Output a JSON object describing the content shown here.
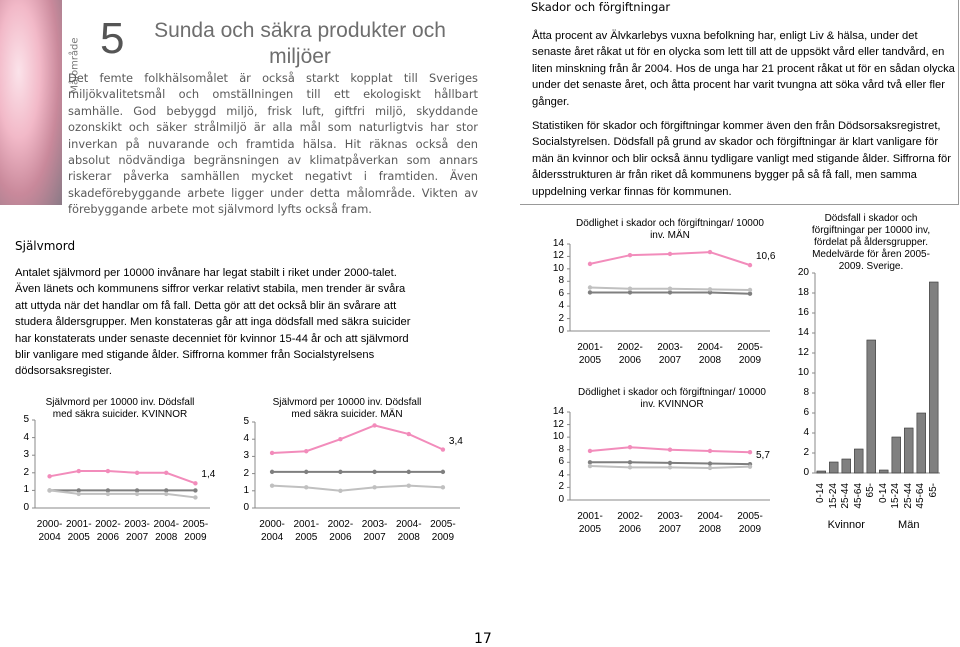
{
  "header": {
    "side_label": "Målområde",
    "number": "5",
    "title": "Sunda och säkra produkter och miljöer"
  },
  "intro": "Det femte folkhälsomålet är också starkt kopplat till Sveriges miljökvalitetsmål och omställningen till ett ekologiskt hållbart samhälle. God bebyggd miljö, frisk luft, giftfri miljö, skyddande ozonskikt och säker strålmiljö är alla mål som naturligtvis har stor inverkan på nuvarande och framtida hälsa. Hit räknas också den absolut nödvändiga begränsningen av klimatpåverkan som annars riskerar påverka samhällen mycket negativt i framtiden. Även skadeförebyggande arbete ligger under detta målområde. Vikten av förebyggande arbete mot självmord lyfts också fram.",
  "section": {
    "heading": "Skador och förgiftningar",
    "paragraphs": [
      "Åtta procent av Älvkarlebys vuxna befolkning har, enligt Liv & hälsa, under det senaste året råkat ut för en olycka som lett till att de uppsökt vård eller tandvård, en liten minskning från år 2004. Hos de unga har 21 procent råkat ut för en sådan olycka under det senaste året, och åtta procent har varit tvungna att söka vård två eller fler gånger.",
      "Statistiken för skador och förgiftningar kommer även den från Dödsorsaksregistret, Socialstyrelsen. Dödsfall på grund av skador och förgiftningar är klart vanligare för män än kvinnor och blir också ännu tydligare vanligt med stigande ålder. Siffrorna för åldersstrukturen är från riket då kommunens bygger på så få fall, men samma uppdelning verkar finnas för kommunen."
    ]
  },
  "suicide": {
    "heading": "Självmord",
    "paragraph": "Antalet självmord per 10000 invånare har legat stabilt i riket under 2000-talet. Även länets och kommunens siffror verkar relativt stabila, men trender är svåra att uttyda när det handlar om få fall. Detta gör att det också blir än svårare att studera åldersgrupper. Men konstateras går att inga dödsfall med säkra suicider har konstaterats under senaste decenniet för kvinnor 15-44 år och att självmord blir vanligare med stigande ålder. Siffrorna kommer från Socialstyrelsens dödsorsaksregister."
  },
  "page_number": "17",
  "chart_data": [
    {
      "type": "line",
      "title": "Självmord per 10000 inv. Dödsfall med säkra suicider. KVINNOR",
      "categories": [
        "2000-2004",
        "2001-2005",
        "2002-2006",
        "2003-2007",
        "2004-2008",
        "2005-2009"
      ],
      "ylim": [
        0,
        5
      ],
      "yticks": [
        0,
        1,
        2,
        3,
        4,
        5
      ],
      "series": [
        {
          "color": "#f28cbb",
          "values": [
            1.8,
            2.1,
            2.1,
            2.0,
            2.0,
            1.4
          ],
          "value_labels": [
            null,
            null,
            null,
            null,
            null,
            "1,4"
          ]
        },
        {
          "color": "#7f7f7f",
          "values": [
            1.0,
            1.0,
            1.0,
            1.0,
            1.0,
            1.0
          ]
        },
        {
          "color": "#c0c0c0",
          "values": [
            1.0,
            0.8,
            0.8,
            0.8,
            0.8,
            0.6
          ]
        }
      ]
    },
    {
      "type": "line",
      "title": "Självmord per 10000 inv. Dödsfall med säkra suicider. MÄN",
      "categories": [
        "2000-2004",
        "2001-2005",
        "2002-2006",
        "2003-2007",
        "2004-2008",
        "2005-2009"
      ],
      "ylim": [
        0,
        5
      ],
      "yticks": [
        0,
        1,
        2,
        3,
        4,
        5
      ],
      "series": [
        {
          "color": "#f28cbb",
          "values": [
            3.2,
            3.3,
            4.0,
            4.8,
            4.3,
            3.4
          ],
          "value_labels": [
            null,
            null,
            null,
            null,
            null,
            "3,4"
          ]
        },
        {
          "color": "#7f7f7f",
          "values": [
            2.1,
            2.1,
            2.1,
            2.1,
            2.1,
            2.1
          ]
        },
        {
          "color": "#c0c0c0",
          "values": [
            1.3,
            1.2,
            1.0,
            1.2,
            1.3,
            1.2
          ]
        }
      ]
    },
    {
      "type": "line",
      "title": "Dödlighet i skador och förgiftningar/ 10000 inv. MÄN",
      "categories": [
        "2001-2005",
        "2002-2006",
        "2003-2007",
        "2004-2008",
        "2005-2009"
      ],
      "ylim": [
        0,
        14
      ],
      "yticks": [
        0,
        2,
        4,
        6,
        8,
        10,
        12,
        14
      ],
      "series": [
        {
          "color": "#f28cbb",
          "values": [
            10.8,
            12.2,
            12.4,
            12.7,
            10.6
          ],
          "value_labels": [
            null,
            null,
            null,
            null,
            "10,6"
          ]
        },
        {
          "color": "#7f7f7f",
          "values": [
            6.2,
            6.2,
            6.2,
            6.2,
            6.0
          ]
        },
        {
          "color": "#c0c0c0",
          "values": [
            7.0,
            6.8,
            6.8,
            6.7,
            6.6
          ]
        }
      ]
    },
    {
      "type": "line",
      "title": "Dödlighet i skador och förgiftningar/ 10000 inv. KVINNOR",
      "categories": [
        "2001-2005",
        "2002-2006",
        "2003-2007",
        "2004-2008",
        "2005-2009"
      ],
      "ylim": [
        0,
        14
      ],
      "yticks": [
        0,
        2,
        4,
        6,
        8,
        10,
        12,
        14
      ],
      "series": [
        {
          "color": "#f28cbb",
          "values": [
            7.8,
            8.4,
            8.0,
            7.8,
            7.6
          ]
        },
        {
          "color": "#7f7f7f",
          "values": [
            6.0,
            6.0,
            5.9,
            5.8,
            5.7
          ],
          "value_labels": [
            null,
            null,
            null,
            null,
            "5,7"
          ]
        },
        {
          "color": "#c0c0c0",
          "values": [
            5.4,
            5.2,
            5.2,
            5.1,
            5.3
          ]
        }
      ]
    },
    {
      "type": "bar",
      "title": "Dödsfall i skador och förgiftningar per 10000 inv, fördelat på åldersgrupper. Medelvärde för åren 2005-2009. Sverige.",
      "categories": [
        "0-14",
        "15-24",
        "25-44",
        "45-64",
        "65-",
        "0-14",
        "15-24",
        "25-44",
        "45-64",
        "65-"
      ],
      "groups": [
        "Kvinnor",
        "Män"
      ],
      "values": [
        0.2,
        1.1,
        1.4,
        2.4,
        13.3,
        0.3,
        3.6,
        4.5,
        6.0,
        19.1
      ],
      "color": "#808080",
      "ylim": [
        0,
        20
      ],
      "yticks": [
        0,
        2,
        4,
        6,
        8,
        10,
        12,
        14,
        16,
        18,
        20
      ]
    }
  ]
}
